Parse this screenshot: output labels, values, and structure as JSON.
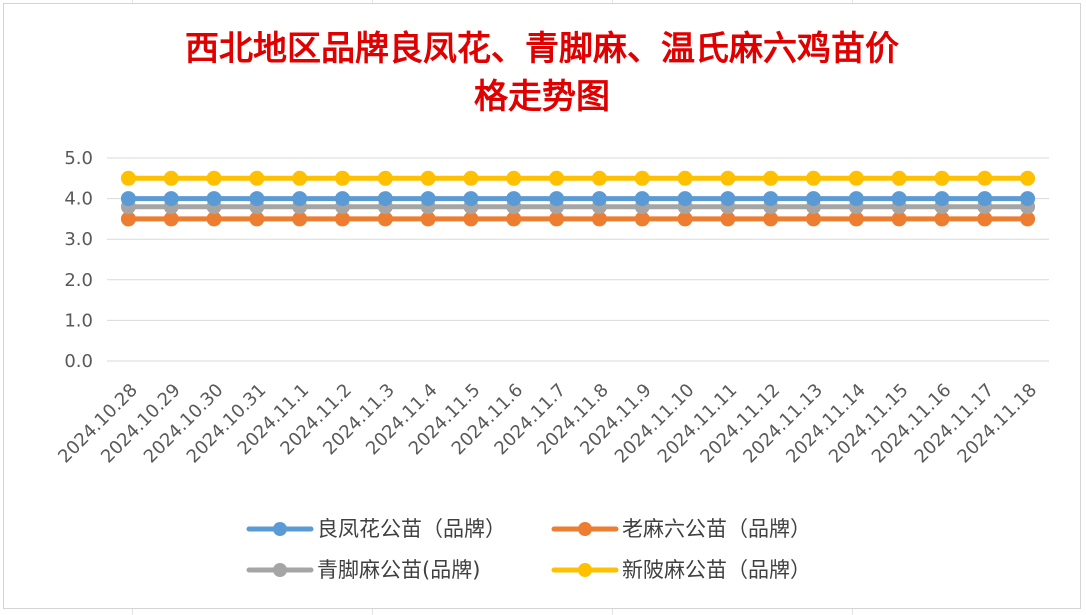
{
  "chart_data": {
    "type": "line",
    "title": "西北地区品牌良凤花、青脚麻、温氏麻六鸡苗价格走势图",
    "title_lines": [
      "西北地区品牌良凤花、青脚麻、温氏麻六鸡苗价",
      "格走势图"
    ],
    "xlabel": "",
    "ylabel": "",
    "ylim": [
      0,
      5
    ],
    "yticks": [
      "0.0",
      "1.0",
      "2.0",
      "3.0",
      "4.0",
      "5.0"
    ],
    "grid": true,
    "legend_position": "bottom",
    "x": [
      "2024.10.28",
      "2024.10.29",
      "2024.10.30",
      "2024.10.31",
      "2024.11.1",
      "2024.11.2",
      "2024.11.3",
      "2024.11.4",
      "2024.11.5",
      "2024.11.6",
      "2024.11.7",
      "2024.11.8",
      "2024.11.9",
      "2024.11.10",
      "2024.11.11",
      "2024.11.12",
      "2024.11.13",
      "2024.11.14",
      "2024.11.15",
      "2024.11.16",
      "2024.11.17",
      "2024.11.18"
    ],
    "series": [
      {
        "name": "良凤花公苗（品牌）",
        "color": "#5b9bd5",
        "values": [
          4.0,
          4.0,
          4.0,
          4.0,
          4.0,
          4.0,
          4.0,
          4.0,
          4.0,
          4.0,
          4.0,
          4.0,
          4.0,
          4.0,
          4.0,
          4.0,
          4.0,
          4.0,
          4.0,
          4.0,
          4.0,
          4.0
        ]
      },
      {
        "name": "老麻六公苗（品牌）",
        "color": "#ed7d31",
        "values": [
          3.5,
          3.5,
          3.5,
          3.5,
          3.5,
          3.5,
          3.5,
          3.5,
          3.5,
          3.5,
          3.5,
          3.5,
          3.5,
          3.5,
          3.5,
          3.5,
          3.5,
          3.5,
          3.5,
          3.5,
          3.5,
          3.5
        ]
      },
      {
        "name": "青脚麻公苗(品牌)",
        "color": "#a5a5a5",
        "values": [
          3.8,
          3.8,
          3.8,
          3.8,
          3.8,
          3.8,
          3.8,
          3.8,
          3.8,
          3.8,
          3.8,
          3.8,
          3.8,
          3.8,
          3.8,
          3.8,
          3.8,
          3.8,
          3.8,
          3.8,
          3.8,
          3.8
        ]
      },
      {
        "name": "新陂麻公苗（品牌）",
        "color": "#ffc000",
        "values": [
          4.5,
          4.5,
          4.5,
          4.5,
          4.5,
          4.5,
          4.5,
          4.5,
          4.5,
          4.5,
          4.5,
          4.5,
          4.5,
          4.5,
          4.5,
          4.5,
          4.5,
          4.5,
          4.5,
          4.5,
          4.5,
          4.5
        ]
      }
    ],
    "legend_order": [
      0,
      1,
      2,
      3
    ]
  }
}
